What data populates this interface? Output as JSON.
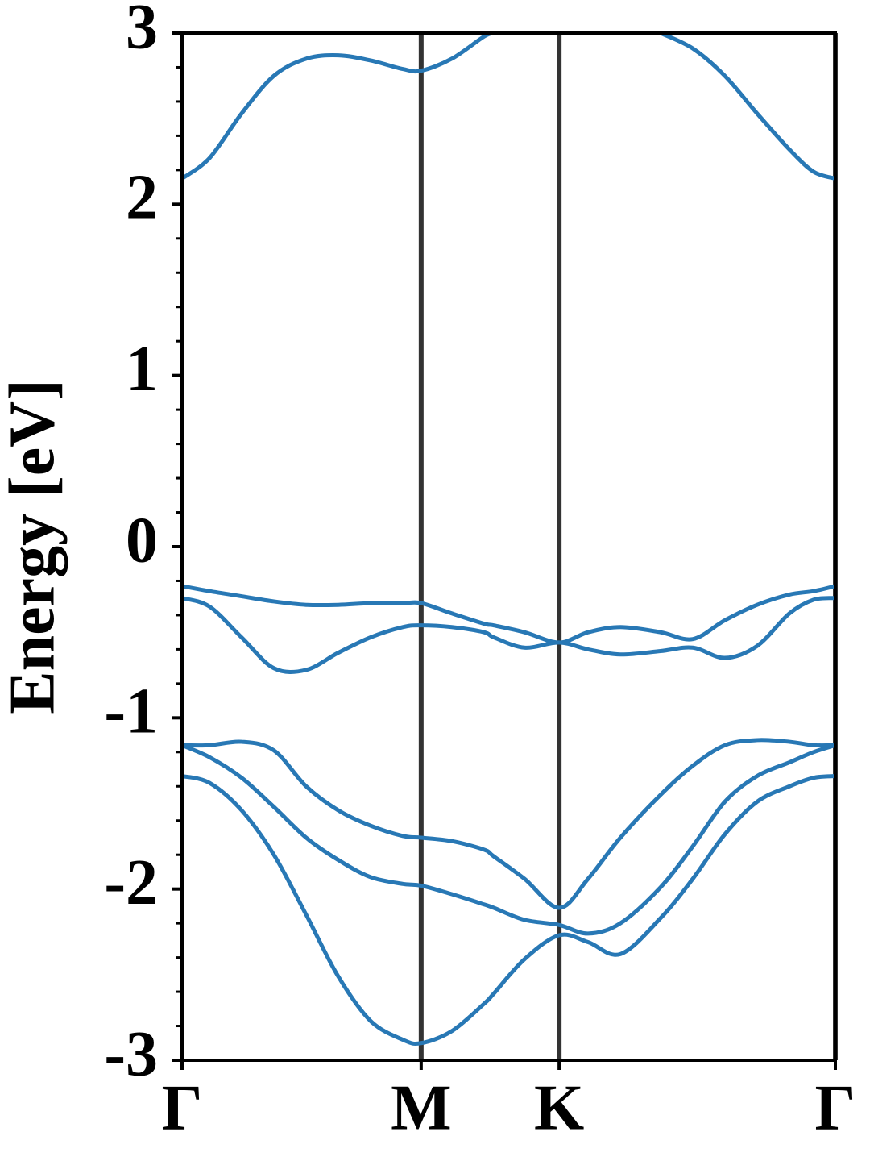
{
  "chart_data": {
    "type": "line",
    "ylabel": "Energy [eV]",
    "x": [
      0,
      0.115,
      0.249,
      0.384,
      0.519,
      0.653,
      0.788,
      0.923,
      1,
      1.128,
      1.263,
      1.304,
      1.432,
      1.577,
      1.698,
      1.833,
      2.001,
      2.136,
      2.27,
      2.405,
      2.54,
      2.641,
      2.732
    ],
    "series": [
      {
        "color": "#2878b5",
        "values": [
          2.15,
          2.27,
          2.53,
          2.75,
          2.85,
          2.87,
          2.84,
          2.79,
          2.78,
          2.85,
          2.98,
          3.0,
          null,
          null,
          null,
          null,
          3.0,
          2.91,
          2.75,
          2.53,
          2.32,
          2.19,
          2.15
        ]
      },
      {
        "color": "#2878b5",
        "values": [
          -0.23,
          -0.26,
          -0.29,
          -0.32,
          -0.34,
          -0.34,
          -0.33,
          -0.33,
          -0.33,
          -0.39,
          -0.45,
          -0.46,
          -0.5,
          -0.56,
          -0.5,
          -0.47,
          -0.5,
          -0.54,
          -0.43,
          -0.34,
          -0.28,
          -0.26,
          -0.23
        ]
      },
      {
        "color": "#2878b5",
        "values": [
          -0.3,
          -0.35,
          -0.53,
          -0.71,
          -0.72,
          -0.62,
          -0.53,
          -0.47,
          -0.46,
          -0.47,
          -0.5,
          -0.53,
          -0.59,
          -0.56,
          -0.6,
          -0.63,
          -0.61,
          -0.59,
          -0.65,
          -0.58,
          -0.39,
          -0.31,
          -0.3
        ]
      },
      {
        "color": "#2878b5",
        "values": [
          -1.16,
          -1.16,
          -1.14,
          -1.19,
          -1.4,
          -1.54,
          -1.63,
          -1.69,
          -1.7,
          -1.72,
          -1.77,
          -1.81,
          -1.94,
          -2.11,
          -1.94,
          -1.7,
          -1.45,
          -1.28,
          -1.16,
          -1.13,
          -1.14,
          -1.16,
          -1.16
        ]
      },
      {
        "color": "#2878b5",
        "values": [
          -1.16,
          -1.23,
          -1.35,
          -1.52,
          -1.7,
          -1.83,
          -1.93,
          -1.97,
          -1.98,
          -2.03,
          -2.09,
          -2.11,
          -2.18,
          -2.21,
          -2.26,
          -2.2,
          -1.99,
          -1.75,
          -1.49,
          -1.34,
          -1.26,
          -1.2,
          -1.16
        ]
      },
      {
        "color": "#2878b5",
        "values": [
          -1.34,
          -1.38,
          -1.54,
          -1.8,
          -2.15,
          -2.51,
          -2.77,
          -2.88,
          -2.9,
          -2.83,
          -2.67,
          -2.61,
          -2.41,
          -2.27,
          -2.31,
          -2.38,
          -2.17,
          -1.94,
          -1.68,
          -1.49,
          -1.4,
          -1.35,
          -1.34
        ]
      }
    ],
    "xlim": [
      0,
      2.732
    ],
    "xticks": [
      {
        "value": 0,
        "label": "Γ"
      },
      {
        "value": 1,
        "label": "M"
      },
      {
        "value": 1.577,
        "label": "K"
      },
      {
        "value": 2.732,
        "label": "Γ"
      }
    ],
    "xgrid": true,
    "xgrid_color": "#333333",
    "ylim": [
      -3,
      3
    ],
    "yticks": [
      -3,
      -2,
      -1,
      0,
      1,
      2,
      3
    ],
    "yminorticks": [
      -2.8,
      -2.6,
      -2.4,
      -2.2,
      -1.8,
      -1.6,
      -1.4,
      -1.2,
      -0.8,
      -0.6,
      -0.4,
      -0.2,
      0.2,
      0.4,
      0.6,
      0.8,
      1.2,
      1.4,
      1.6,
      1.8,
      2.2,
      2.4,
      2.6,
      2.8
    ]
  }
}
